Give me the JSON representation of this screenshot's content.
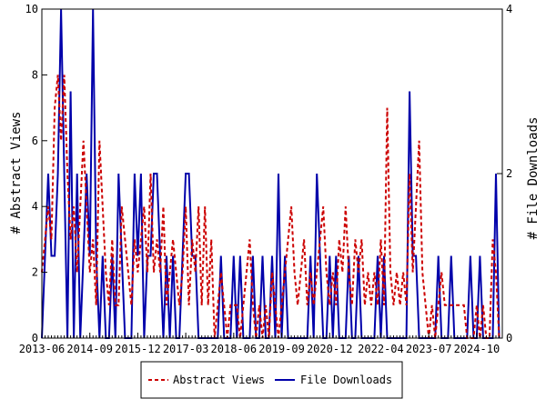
{
  "chart_data": {
    "type": "line",
    "title": "",
    "xlabel": "",
    "ylabel": "# Abstract Views",
    "y2label": "# File Downloads",
    "ylim": [
      0,
      10
    ],
    "y2lim": [
      0,
      4
    ],
    "yticks": [
      "0",
      "2",
      "4",
      "6",
      "8",
      "10"
    ],
    "y2ticks": [
      "0",
      "2",
      "4"
    ],
    "xticks": [
      "2013-06",
      "2014-09",
      "2015-12",
      "2017-03",
      "2018-06",
      "2019-09",
      "2020-12",
      "2022-04",
      "2023-07",
      "2024-10"
    ],
    "xrange": [
      "2013-06",
      "2025-06"
    ],
    "grid": false,
    "legend_position": "bottom-center",
    "series": [
      {
        "name": "Abstract Views",
        "axis": "left",
        "color": "#cc0000",
        "style": "dashed",
        "points": [
          [
            "2013-06",
            2
          ],
          [
            "2013-07",
            3
          ],
          [
            "2013-08",
            4
          ],
          [
            "2013-09",
            3
          ],
          [
            "2013-10",
            7
          ],
          [
            "2013-11",
            8
          ],
          [
            "2013-12",
            6
          ],
          [
            "2014-01",
            8
          ],
          [
            "2014-02",
            5
          ],
          [
            "2014-03",
            3
          ],
          [
            "2014-04",
            4
          ],
          [
            "2014-05",
            2
          ],
          [
            "2014-06",
            4
          ],
          [
            "2014-07",
            6
          ],
          [
            "2014-08",
            4
          ],
          [
            "2014-09",
            2
          ],
          [
            "2014-10",
            3
          ],
          [
            "2014-11",
            1
          ],
          [
            "2014-12",
            6
          ],
          [
            "2015-01",
            4
          ],
          [
            "2015-02",
            2
          ],
          [
            "2015-03",
            1
          ],
          [
            "2015-04",
            3
          ],
          [
            "2015-05",
            1
          ],
          [
            "2015-06",
            1
          ],
          [
            "2015-07",
            4
          ],
          [
            "2015-08",
            3
          ],
          [
            "2015-09",
            2
          ],
          [
            "2015-10",
            1
          ],
          [
            "2015-11",
            3
          ],
          [
            "2015-12",
            2
          ],
          [
            "2016-01",
            3
          ],
          [
            "2016-02",
            4
          ],
          [
            "2016-03",
            2
          ],
          [
            "2016-04",
            5
          ],
          [
            "2016-05",
            2
          ],
          [
            "2016-06",
            3
          ],
          [
            "2016-07",
            2
          ],
          [
            "2016-08",
            4
          ],
          [
            "2016-09",
            1
          ],
          [
            "2016-10",
            2
          ],
          [
            "2016-11",
            3
          ],
          [
            "2016-12",
            2
          ],
          [
            "2017-01",
            1
          ],
          [
            "2017-02",
            2
          ],
          [
            "2017-03",
            4
          ],
          [
            "2017-04",
            1
          ],
          [
            "2017-05",
            3
          ],
          [
            "2017-06",
            2
          ],
          [
            "2017-07",
            4
          ],
          [
            "2017-08",
            1
          ],
          [
            "2017-09",
            4
          ],
          [
            "2017-10",
            1
          ],
          [
            "2017-11",
            3
          ],
          [
            "2017-12",
            0
          ],
          [
            "2018-01",
            1
          ],
          [
            "2018-02",
            2
          ],
          [
            "2018-03",
            1
          ],
          [
            "2018-04",
            0
          ],
          [
            "2018-05",
            1
          ],
          [
            "2018-06",
            1
          ],
          [
            "2018-07",
            1
          ],
          [
            "2018-08",
            0
          ],
          [
            "2018-09",
            1
          ],
          [
            "2018-10",
            2
          ],
          [
            "2018-11",
            3
          ],
          [
            "2018-12",
            1
          ],
          [
            "2019-01",
            0
          ],
          [
            "2019-02",
            1
          ],
          [
            "2019-03",
            0
          ],
          [
            "2019-04",
            1
          ],
          [
            "2019-05",
            0
          ],
          [
            "2019-06",
            2
          ],
          [
            "2019-07",
            1
          ],
          [
            "2019-08",
            0
          ],
          [
            "2019-09",
            1
          ],
          [
            "2019-10",
            2
          ],
          [
            "2019-11",
            3
          ],
          [
            "2019-12",
            4
          ],
          [
            "2020-01",
            2
          ],
          [
            "2020-02",
            1
          ],
          [
            "2020-03",
            2
          ],
          [
            "2020-04",
            3
          ],
          [
            "2020-05",
            1
          ],
          [
            "2020-06",
            2
          ],
          [
            "2020-07",
            1
          ],
          [
            "2020-08",
            2
          ],
          [
            "2020-09",
            3
          ],
          [
            "2020-10",
            4
          ],
          [
            "2020-11",
            2
          ],
          [
            "2020-12",
            1
          ],
          [
            "2021-01",
            2
          ],
          [
            "2021-02",
            1
          ],
          [
            "2021-03",
            3
          ],
          [
            "2021-04",
            2
          ],
          [
            "2021-05",
            4
          ],
          [
            "2021-06",
            2
          ],
          [
            "2021-07",
            1
          ],
          [
            "2021-08",
            3
          ],
          [
            "2021-09",
            2
          ],
          [
            "2021-10",
            3
          ],
          [
            "2021-11",
            1
          ],
          [
            "2021-12",
            2
          ],
          [
            "2022-01",
            1
          ],
          [
            "2022-02",
            2
          ],
          [
            "2022-03",
            1
          ],
          [
            "2022-04",
            3
          ],
          [
            "2022-05",
            1
          ],
          [
            "2022-06",
            7
          ],
          [
            "2022-07",
            2
          ],
          [
            "2022-08",
            1
          ],
          [
            "2022-09",
            2
          ],
          [
            "2022-10",
            1
          ],
          [
            "2022-11",
            2
          ],
          [
            "2022-12",
            1
          ],
          [
            "2023-01",
            5
          ],
          [
            "2023-02",
            2
          ],
          [
            "2023-03",
            4
          ],
          [
            "2023-04",
            6
          ],
          [
            "2023-05",
            2
          ],
          [
            "2023-06",
            1
          ],
          [
            "2023-07",
            0
          ],
          [
            "2023-08",
            1
          ],
          [
            "2023-09",
            0
          ],
          [
            "2023-10",
            1
          ],
          [
            "2023-11",
            2
          ],
          [
            "2023-12",
            1
          ],
          [
            "2024-01",
            1
          ],
          [
            "2024-02",
            1
          ],
          [
            "2024-03",
            1
          ],
          [
            "2024-04",
            1
          ],
          [
            "2024-05",
            1
          ],
          [
            "2024-06",
            1
          ],
          [
            "2024-07",
            0
          ],
          [
            "2024-08",
            0
          ],
          [
            "2024-09",
            0
          ],
          [
            "2024-10",
            1
          ],
          [
            "2024-11",
            0
          ],
          [
            "2024-12",
            1
          ],
          [
            "2025-01",
            0
          ],
          [
            "2025-02",
            0
          ],
          [
            "2025-03",
            3
          ],
          [
            "2025-04",
            2
          ],
          [
            "2025-05",
            0
          ]
        ]
      },
      {
        "name": "File Downloads",
        "axis": "right",
        "color": "#0000aa",
        "style": "solid",
        "points": [
          [
            "2013-06",
            0
          ],
          [
            "2013-07",
            1
          ],
          [
            "2013-08",
            2
          ],
          [
            "2013-09",
            1
          ],
          [
            "2013-10",
            1
          ],
          [
            "2013-11",
            2
          ],
          [
            "2013-12",
            4
          ],
          [
            "2014-01",
            2
          ],
          [
            "2014-02",
            0
          ],
          [
            "2014-03",
            3
          ],
          [
            "2014-04",
            0
          ],
          [
            "2014-05",
            2
          ],
          [
            "2014-06",
            0
          ],
          [
            "2014-07",
            1
          ],
          [
            "2014-08",
            2
          ],
          [
            "2014-09",
            1
          ],
          [
            "2014-10",
            4
          ],
          [
            "2014-11",
            1
          ],
          [
            "2014-12",
            0
          ],
          [
            "2015-01",
            1
          ],
          [
            "2015-02",
            0
          ],
          [
            "2015-03",
            0
          ],
          [
            "2015-04",
            1
          ],
          [
            "2015-05",
            0
          ],
          [
            "2015-06",
            2
          ],
          [
            "2015-07",
            1
          ],
          [
            "2015-08",
            0
          ],
          [
            "2015-09",
            0
          ],
          [
            "2015-10",
            0
          ],
          [
            "2015-11",
            2
          ],
          [
            "2015-12",
            1
          ],
          [
            "2016-01",
            2
          ],
          [
            "2016-02",
            0
          ],
          [
            "2016-03",
            1
          ],
          [
            "2016-04",
            1
          ],
          [
            "2016-05",
            2
          ],
          [
            "2016-06",
            2
          ],
          [
            "2016-07",
            1
          ],
          [
            "2016-08",
            0
          ],
          [
            "2016-09",
            1
          ],
          [
            "2016-10",
            0
          ],
          [
            "2016-11",
            1
          ],
          [
            "2016-12",
            0
          ],
          [
            "2017-01",
            0
          ],
          [
            "2017-02",
            1
          ],
          [
            "2017-03",
            2
          ],
          [
            "2017-04",
            2
          ],
          [
            "2017-05",
            1
          ],
          [
            "2017-06",
            1
          ],
          [
            "2017-07",
            0
          ],
          [
            "2017-08",
            0
          ],
          [
            "2017-09",
            0
          ],
          [
            "2017-10",
            0
          ],
          [
            "2017-11",
            0
          ],
          [
            "2017-12",
            0
          ],
          [
            "2018-01",
            0
          ],
          [
            "2018-02",
            1
          ],
          [
            "2018-03",
            0
          ],
          [
            "2018-04",
            0
          ],
          [
            "2018-05",
            0
          ],
          [
            "2018-06",
            1
          ],
          [
            "2018-07",
            0
          ],
          [
            "2018-08",
            1
          ],
          [
            "2018-09",
            0
          ],
          [
            "2018-10",
            0
          ],
          [
            "2018-11",
            0
          ],
          [
            "2018-12",
            1
          ],
          [
            "2019-01",
            0
          ],
          [
            "2019-02",
            0
          ],
          [
            "2019-03",
            1
          ],
          [
            "2019-04",
            0
          ],
          [
            "2019-05",
            0
          ],
          [
            "2019-06",
            1
          ],
          [
            "2019-07",
            0
          ],
          [
            "2019-08",
            2
          ],
          [
            "2019-09",
            0
          ],
          [
            "2019-10",
            1
          ],
          [
            "2019-11",
            0
          ],
          [
            "2019-12",
            0
          ],
          [
            "2020-01",
            0
          ],
          [
            "2020-02",
            0
          ],
          [
            "2020-03",
            0
          ],
          [
            "2020-04",
            0
          ],
          [
            "2020-05",
            0
          ],
          [
            "2020-06",
            1
          ],
          [
            "2020-07",
            0
          ],
          [
            "2020-08",
            2
          ],
          [
            "2020-09",
            1
          ],
          [
            "2020-10",
            0
          ],
          [
            "2020-11",
            0
          ],
          [
            "2020-12",
            1
          ],
          [
            "2021-01",
            0
          ],
          [
            "2021-02",
            1
          ],
          [
            "2021-03",
            0
          ],
          [
            "2021-04",
            0
          ],
          [
            "2021-05",
            0
          ],
          [
            "2021-06",
            1
          ],
          [
            "2021-07",
            0
          ],
          [
            "2021-08",
            0
          ],
          [
            "2021-09",
            1
          ],
          [
            "2021-10",
            0
          ],
          [
            "2021-11",
            0
          ],
          [
            "2021-12",
            0
          ],
          [
            "2022-01",
            0
          ],
          [
            "2022-02",
            0
          ],
          [
            "2022-03",
            1
          ],
          [
            "2022-04",
            0
          ],
          [
            "2022-05",
            1
          ],
          [
            "2022-06",
            0
          ],
          [
            "2022-07",
            0
          ],
          [
            "2022-08",
            0
          ],
          [
            "2022-09",
            0
          ],
          [
            "2022-10",
            0
          ],
          [
            "2022-11",
            0
          ],
          [
            "2022-12",
            0
          ],
          [
            "2023-01",
            3
          ],
          [
            "2023-02",
            1
          ],
          [
            "2023-03",
            1
          ],
          [
            "2023-04",
            0
          ],
          [
            "2023-05",
            0
          ],
          [
            "2023-06",
            0
          ],
          [
            "2023-07",
            0
          ],
          [
            "2023-08",
            0
          ],
          [
            "2023-09",
            0
          ],
          [
            "2023-10",
            1
          ],
          [
            "2023-11",
            0
          ],
          [
            "2023-12",
            0
          ],
          [
            "2024-01",
            0
          ],
          [
            "2024-02",
            1
          ],
          [
            "2024-03",
            0
          ],
          [
            "2024-04",
            0
          ],
          [
            "2024-05",
            0
          ],
          [
            "2024-06",
            0
          ],
          [
            "2024-07",
            0
          ],
          [
            "2024-08",
            1
          ],
          [
            "2024-09",
            0
          ],
          [
            "2024-10",
            0
          ],
          [
            "2024-11",
            1
          ],
          [
            "2024-12",
            0
          ],
          [
            "2025-01",
            0
          ],
          [
            "2025-02",
            0
          ],
          [
            "2025-03",
            0
          ],
          [
            "2025-04",
            2
          ],
          [
            "2025-05",
            0
          ]
        ]
      }
    ]
  }
}
